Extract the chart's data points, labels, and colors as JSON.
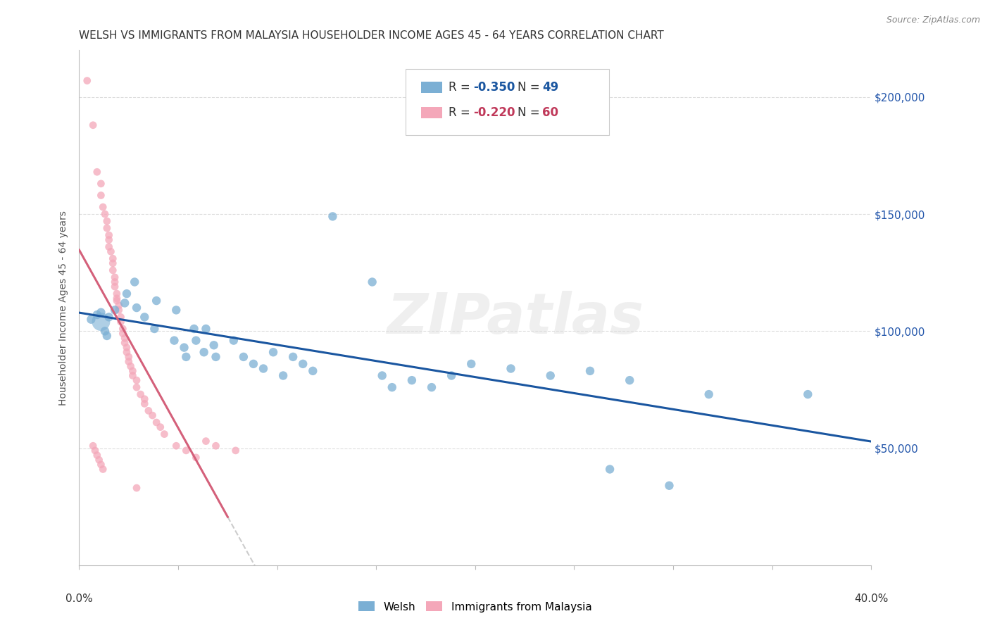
{
  "title": "WELSH VS IMMIGRANTS FROM MALAYSIA HOUSEHOLDER INCOME AGES 45 - 64 YEARS CORRELATION CHART",
  "source": "Source: ZipAtlas.com",
  "ylabel": "Householder Income Ages 45 - 64 years",
  "ytick_labels": [
    "$50,000",
    "$100,000",
    "$150,000",
    "$200,000"
  ],
  "ytick_values": [
    50000,
    100000,
    150000,
    200000
  ],
  "xlim": [
    0.0,
    0.4
  ],
  "ylim": [
    0,
    220000
  ],
  "legend_blue_r": "-0.350",
  "legend_blue_n": "49",
  "legend_pink_r": "-0.220",
  "legend_pink_n": "60",
  "blue_color": "#7BAFD4",
  "pink_color": "#F4A7B9",
  "blue_line_color": "#1A56A0",
  "pink_line_color": "#D4607A",
  "gray_line_color": "#CCCCCC",
  "watermark": "ZIPatlas",
  "background_color": "#FFFFFF",
  "blue_scatter": [
    [
      0.006,
      105000
    ],
    [
      0.009,
      107000
    ],
    [
      0.011,
      108000
    ],
    [
      0.013,
      100000
    ],
    [
      0.014,
      98000
    ],
    [
      0.015,
      106000
    ],
    [
      0.018,
      109000
    ],
    [
      0.023,
      112000
    ],
    [
      0.024,
      116000
    ],
    [
      0.028,
      121000
    ],
    [
      0.029,
      110000
    ],
    [
      0.033,
      106000
    ],
    [
      0.038,
      101000
    ],
    [
      0.039,
      113000
    ],
    [
      0.048,
      96000
    ],
    [
      0.049,
      109000
    ],
    [
      0.053,
      93000
    ],
    [
      0.054,
      89000
    ],
    [
      0.058,
      101000
    ],
    [
      0.059,
      96000
    ],
    [
      0.063,
      91000
    ],
    [
      0.064,
      101000
    ],
    [
      0.068,
      94000
    ],
    [
      0.069,
      89000
    ],
    [
      0.078,
      96000
    ],
    [
      0.083,
      89000
    ],
    [
      0.088,
      86000
    ],
    [
      0.093,
      84000
    ],
    [
      0.098,
      91000
    ],
    [
      0.103,
      81000
    ],
    [
      0.108,
      89000
    ],
    [
      0.113,
      86000
    ],
    [
      0.118,
      83000
    ],
    [
      0.128,
      149000
    ],
    [
      0.148,
      121000
    ],
    [
      0.153,
      81000
    ],
    [
      0.158,
      76000
    ],
    [
      0.168,
      79000
    ],
    [
      0.178,
      76000
    ],
    [
      0.188,
      81000
    ],
    [
      0.198,
      86000
    ],
    [
      0.218,
      84000
    ],
    [
      0.238,
      81000
    ],
    [
      0.258,
      83000
    ],
    [
      0.268,
      41000
    ],
    [
      0.278,
      79000
    ],
    [
      0.298,
      34000
    ],
    [
      0.318,
      73000
    ],
    [
      0.368,
      73000
    ]
  ],
  "blue_large_points": [
    [
      0.011,
      104000
    ]
  ],
  "blue_large_size": 350,
  "blue_scatter_sizes": [
    80,
    80,
    80,
    80,
    80,
    80,
    80,
    80,
    80,
    80,
    80,
    80,
    80,
    80,
    80,
    80,
    80,
    80,
    80,
    80,
    80,
    80,
    80,
    80,
    80,
    80,
    80,
    80,
    80,
    80,
    80,
    80,
    80,
    80,
    80,
    80,
    80,
    80,
    80,
    80,
    80,
    80,
    80,
    80,
    80,
    80,
    80,
    80,
    80
  ],
  "pink_scatter": [
    [
      0.004,
      207000
    ],
    [
      0.007,
      188000
    ],
    [
      0.009,
      168000
    ],
    [
      0.011,
      163000
    ],
    [
      0.011,
      158000
    ],
    [
      0.012,
      153000
    ],
    [
      0.013,
      150000
    ],
    [
      0.014,
      147000
    ],
    [
      0.014,
      144000
    ],
    [
      0.015,
      141000
    ],
    [
      0.015,
      139000
    ],
    [
      0.015,
      136000
    ],
    [
      0.016,
      134000
    ],
    [
      0.017,
      131000
    ],
    [
      0.017,
      129000
    ],
    [
      0.017,
      126000
    ],
    [
      0.018,
      123000
    ],
    [
      0.018,
      121000
    ],
    [
      0.018,
      119000
    ],
    [
      0.019,
      116000
    ],
    [
      0.019,
      114000
    ],
    [
      0.019,
      113000
    ],
    [
      0.02,
      111000
    ],
    [
      0.02,
      109000
    ],
    [
      0.021,
      106000
    ],
    [
      0.021,
      104000
    ],
    [
      0.022,
      101000
    ],
    [
      0.022,
      99000
    ],
    [
      0.023,
      97000
    ],
    [
      0.023,
      95000
    ],
    [
      0.024,
      93000
    ],
    [
      0.024,
      91000
    ],
    [
      0.025,
      89000
    ],
    [
      0.025,
      87000
    ],
    [
      0.026,
      85000
    ],
    [
      0.027,
      83000
    ],
    [
      0.027,
      81000
    ],
    [
      0.029,
      79000
    ],
    [
      0.029,
      76000
    ],
    [
      0.031,
      73000
    ],
    [
      0.033,
      71000
    ],
    [
      0.033,
      69000
    ],
    [
      0.035,
      66000
    ],
    [
      0.037,
      64000
    ],
    [
      0.039,
      61000
    ],
    [
      0.041,
      59000
    ],
    [
      0.043,
      56000
    ],
    [
      0.049,
      51000
    ],
    [
      0.054,
      49000
    ],
    [
      0.059,
      46000
    ],
    [
      0.064,
      53000
    ],
    [
      0.069,
      51000
    ],
    [
      0.079,
      49000
    ],
    [
      0.007,
      51000
    ],
    [
      0.008,
      49000
    ],
    [
      0.009,
      47000
    ],
    [
      0.01,
      45000
    ],
    [
      0.011,
      43000
    ],
    [
      0.012,
      41000
    ],
    [
      0.029,
      33000
    ]
  ],
  "pink_scatter_sizes": [
    60,
    60,
    60,
    60,
    60,
    60,
    60,
    60,
    60,
    60,
    60,
    60,
    60,
    60,
    60,
    60,
    60,
    60,
    60,
    60,
    60,
    60,
    60,
    60,
    60,
    60,
    60,
    60,
    60,
    60,
    60,
    60,
    60,
    60,
    60,
    60,
    60,
    60,
    60,
    60,
    60,
    60,
    60,
    60,
    60,
    60,
    60,
    60,
    60,
    60,
    60,
    60,
    60,
    60,
    60,
    60,
    60,
    60,
    60,
    60
  ],
  "grid_color": "#DDDDDD",
  "title_fontsize": 11,
  "axis_label_fontsize": 10,
  "tick_fontsize": 10,
  "legend_fontsize": 12
}
